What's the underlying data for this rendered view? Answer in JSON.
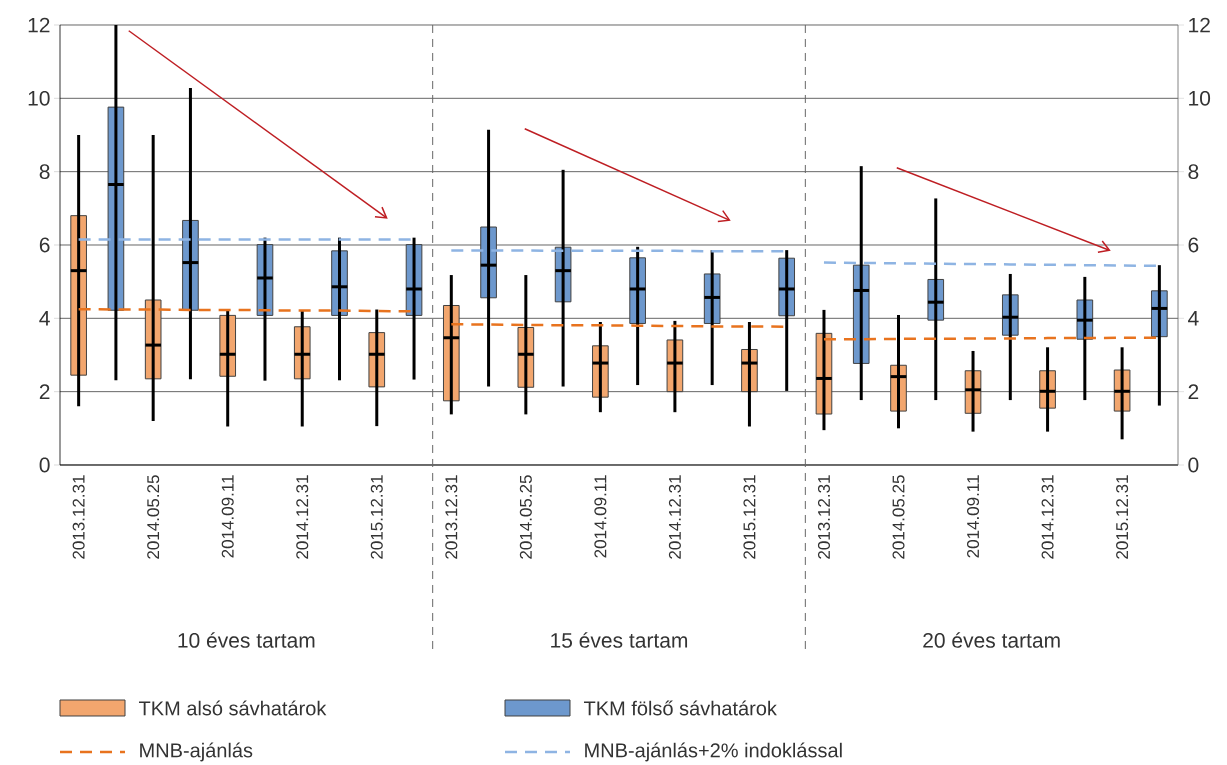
{
  "chart_data": {
    "type": "box",
    "categories": [
      "2013.12.31",
      null,
      "2014.05.25",
      null,
      "2014.09.11",
      null,
      "2014.12.31",
      null,
      "2015.12.31",
      null,
      "2013.12.31",
      null,
      "2014.05.25",
      null,
      "2014.09.11",
      null,
      "2014.12.31",
      null,
      "2015.12.31",
      null,
      "2013.12.31",
      null,
      "2014.05.25",
      null,
      "2014.09.11",
      null,
      "2014.12.31",
      null,
      "2015.12.31",
      null
    ],
    "series": [
      {
        "name": "TKM alsó sávhatárok",
        "color": "#f2a66e",
        "boxes": [
          {
            "low": 1.6,
            "q1": 2.45,
            "median": 5.3,
            "q3": 6.8,
            "high": 9.0
          },
          null,
          {
            "low": 1.2,
            "q1": 2.35,
            "median": 3.27,
            "q3": 4.5,
            "high": 9.0
          },
          null,
          {
            "low": 1.05,
            "q1": 2.42,
            "median": 3.02,
            "q3": 4.08,
            "high": 4.22
          },
          null,
          {
            "low": 1.05,
            "q1": 2.35,
            "median": 3.02,
            "q3": 3.77,
            "high": 4.22
          },
          null,
          {
            "low": 1.06,
            "q1": 2.13,
            "median": 3.02,
            "q3": 3.61,
            "high": 4.24
          },
          null,
          {
            "low": 1.38,
            "q1": 1.75,
            "median": 3.47,
            "q3": 4.35,
            "high": 5.18
          },
          null,
          {
            "low": 1.38,
            "q1": 2.12,
            "median": 3.02,
            "q3": 3.75,
            "high": 5.18
          },
          null,
          {
            "low": 1.44,
            "q1": 1.85,
            "median": 2.78,
            "q3": 3.25,
            "high": 3.9
          },
          null,
          {
            "low": 1.44,
            "q1": 2.0,
            "median": 2.78,
            "q3": 3.41,
            "high": 3.93
          },
          null,
          {
            "low": 1.05,
            "q1": 2.0,
            "median": 2.78,
            "q3": 3.15,
            "high": 3.9
          },
          null,
          {
            "low": 0.95,
            "q1": 1.39,
            "median": 2.36,
            "q3": 3.59,
            "high": 4.23
          },
          null,
          {
            "low": 1.0,
            "q1": 1.47,
            "median": 2.41,
            "q3": 2.72,
            "high": 4.09
          },
          null,
          {
            "low": 0.91,
            "q1": 1.41,
            "median": 2.05,
            "q3": 2.57,
            "high": 3.11
          },
          null,
          {
            "low": 0.91,
            "q1": 1.55,
            "median": 2.01,
            "q3": 2.57,
            "high": 3.21
          },
          null,
          {
            "low": 0.7,
            "q1": 1.47,
            "median": 2.01,
            "q3": 2.59,
            "high": 3.21
          },
          null
        ]
      },
      {
        "name": "TKM fölső sávhatárok",
        "color": "#6d98cd",
        "boxes": [
          null,
          {
            "low": 2.31,
            "q1": 4.22,
            "median": 7.65,
            "q3": 9.76,
            "high": 12.0
          },
          null,
          {
            "low": 2.34,
            "q1": 4.22,
            "median": 5.52,
            "q3": 6.67,
            "high": 10.28
          },
          null,
          {
            "low": 2.3,
            "q1": 4.08,
            "median": 5.1,
            "q3": 6.01,
            "high": 6.2
          },
          null,
          {
            "low": 2.31,
            "q1": 4.08,
            "median": 4.86,
            "q3": 5.84,
            "high": 6.2
          },
          null,
          {
            "low": 2.33,
            "q1": 4.08,
            "median": 4.8,
            "q3": 6.01,
            "high": 6.2
          },
          null,
          {
            "low": 2.14,
            "q1": 4.56,
            "median": 5.45,
            "q3": 6.49,
            "high": 9.14
          },
          null,
          {
            "low": 2.14,
            "q1": 4.45,
            "median": 5.3,
            "q3": 5.94,
            "high": 8.05
          },
          null,
          {
            "low": 2.18,
            "q1": 3.86,
            "median": 4.8,
            "q3": 5.65,
            "high": 5.95
          },
          null,
          {
            "low": 2.18,
            "q1": 3.86,
            "median": 4.57,
            "q3": 5.21,
            "high": 5.86
          },
          null,
          {
            "low": 2.02,
            "q1": 4.07,
            "median": 4.8,
            "q3": 5.64,
            "high": 5.86
          },
          null,
          {
            "low": 1.77,
            "q1": 2.77,
            "median": 4.76,
            "q3": 5.45,
            "high": 8.15
          },
          null,
          {
            "low": 1.77,
            "q1": 3.95,
            "median": 4.44,
            "q3": 5.06,
            "high": 7.27
          },
          null,
          {
            "low": 1.77,
            "q1": 3.54,
            "median": 4.03,
            "q3": 4.64,
            "high": 5.21
          },
          null,
          {
            "low": 1.77,
            "q1": 3.43,
            "median": 3.95,
            "q3": 4.5,
            "high": 5.13
          },
          null,
          {
            "low": 1.62,
            "q1": 3.5,
            "median": 4.27,
            "q3": 4.75,
            "high": 5.45
          }
        ]
      },
      {
        "name": "MNB-ajánlás",
        "type": "line",
        "line_style": "dashed",
        "color": "#e8731e",
        "values": [
          4.25,
          4.24,
          4.24,
          4.23,
          4.23,
          4.22,
          4.21,
          4.21,
          4.2,
          4.19,
          3.84,
          3.83,
          3.82,
          3.81,
          3.81,
          3.8,
          3.79,
          3.78,
          3.78,
          3.77,
          3.43,
          3.43,
          3.44,
          3.44,
          3.45,
          3.45,
          3.46,
          3.46,
          3.47,
          3.47
        ]
      },
      {
        "name": "MNB-ajánlás+2% indoklással",
        "type": "line",
        "line_style": "dashed",
        "color": "#8eb4e3",
        "values": [
          6.15,
          6.15,
          6.15,
          6.15,
          6.15,
          6.15,
          6.15,
          6.15,
          6.15,
          6.15,
          5.85,
          5.85,
          5.85,
          5.84,
          5.84,
          5.84,
          5.84,
          5.83,
          5.83,
          5.83,
          5.52,
          5.51,
          5.5,
          5.49,
          5.48,
          5.47,
          5.46,
          5.45,
          5.44,
          5.43
        ]
      }
    ],
    "ylim": [
      0,
      12
    ],
    "yticks": [
      0,
      2,
      4,
      6,
      8,
      10,
      12
    ],
    "y2lim": [
      0,
      12
    ],
    "y2ticks": [
      0,
      2,
      4,
      6,
      8,
      10,
      12
    ],
    "grid": "y",
    "legend": "bottom",
    "annotations": [
      "10 éves tartam",
      "15 éves tartam",
      "20 éves tartam"
    ]
  }
}
